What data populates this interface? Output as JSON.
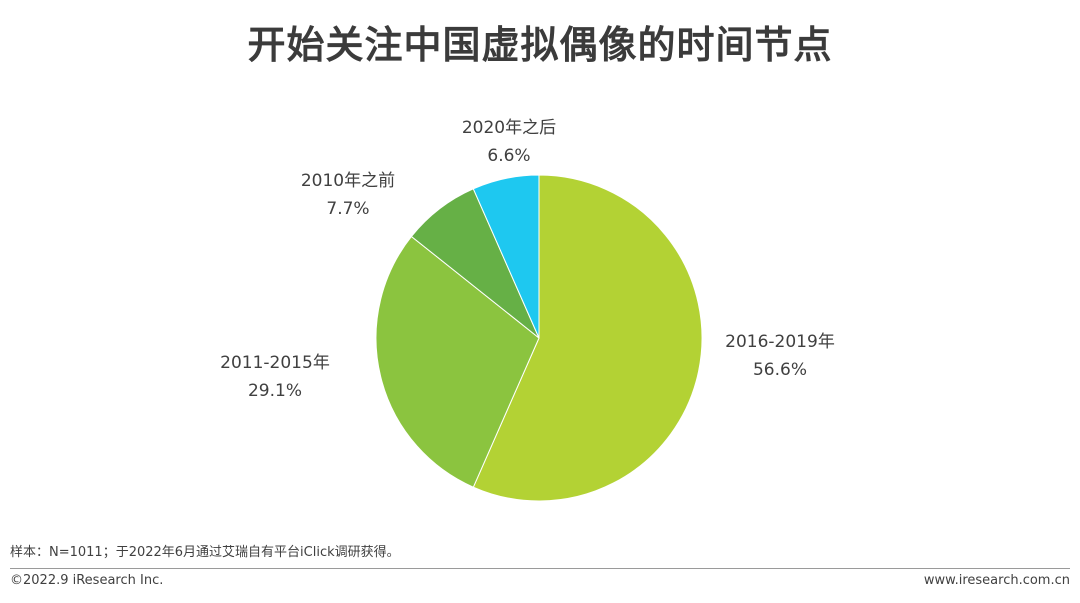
{
  "title": "开始关注中国虚拟偶像的时间节点",
  "chart_data": {
    "type": "pie",
    "title": "开始关注中国虚拟偶像的时间节点",
    "slices": [
      {
        "label": "2016-2019年",
        "value": 56.6,
        "value_label": "56.6%",
        "color": "#b3d234"
      },
      {
        "label": "2011-2015年",
        "value": 29.1,
        "value_label": "29.1%",
        "color": "#8bc43f"
      },
      {
        "label": "2010年之前",
        "value": 7.7,
        "value_label": "7.7%",
        "color": "#66b046"
      },
      {
        "label": "2020年之后",
        "value": 6.6,
        "value_label": "6.6%",
        "color": "#1ec8f0"
      }
    ],
    "start_angle": "12 o'clock",
    "direction": "clockwise",
    "legend": "none"
  },
  "footer": {
    "note": "样本：N=1011；于2022年6月通过艾瑞自有平台iClick调研获得。",
    "copyright": "©2022.9 iResearch Inc.",
    "website": "www.iresearch.com.cn"
  }
}
